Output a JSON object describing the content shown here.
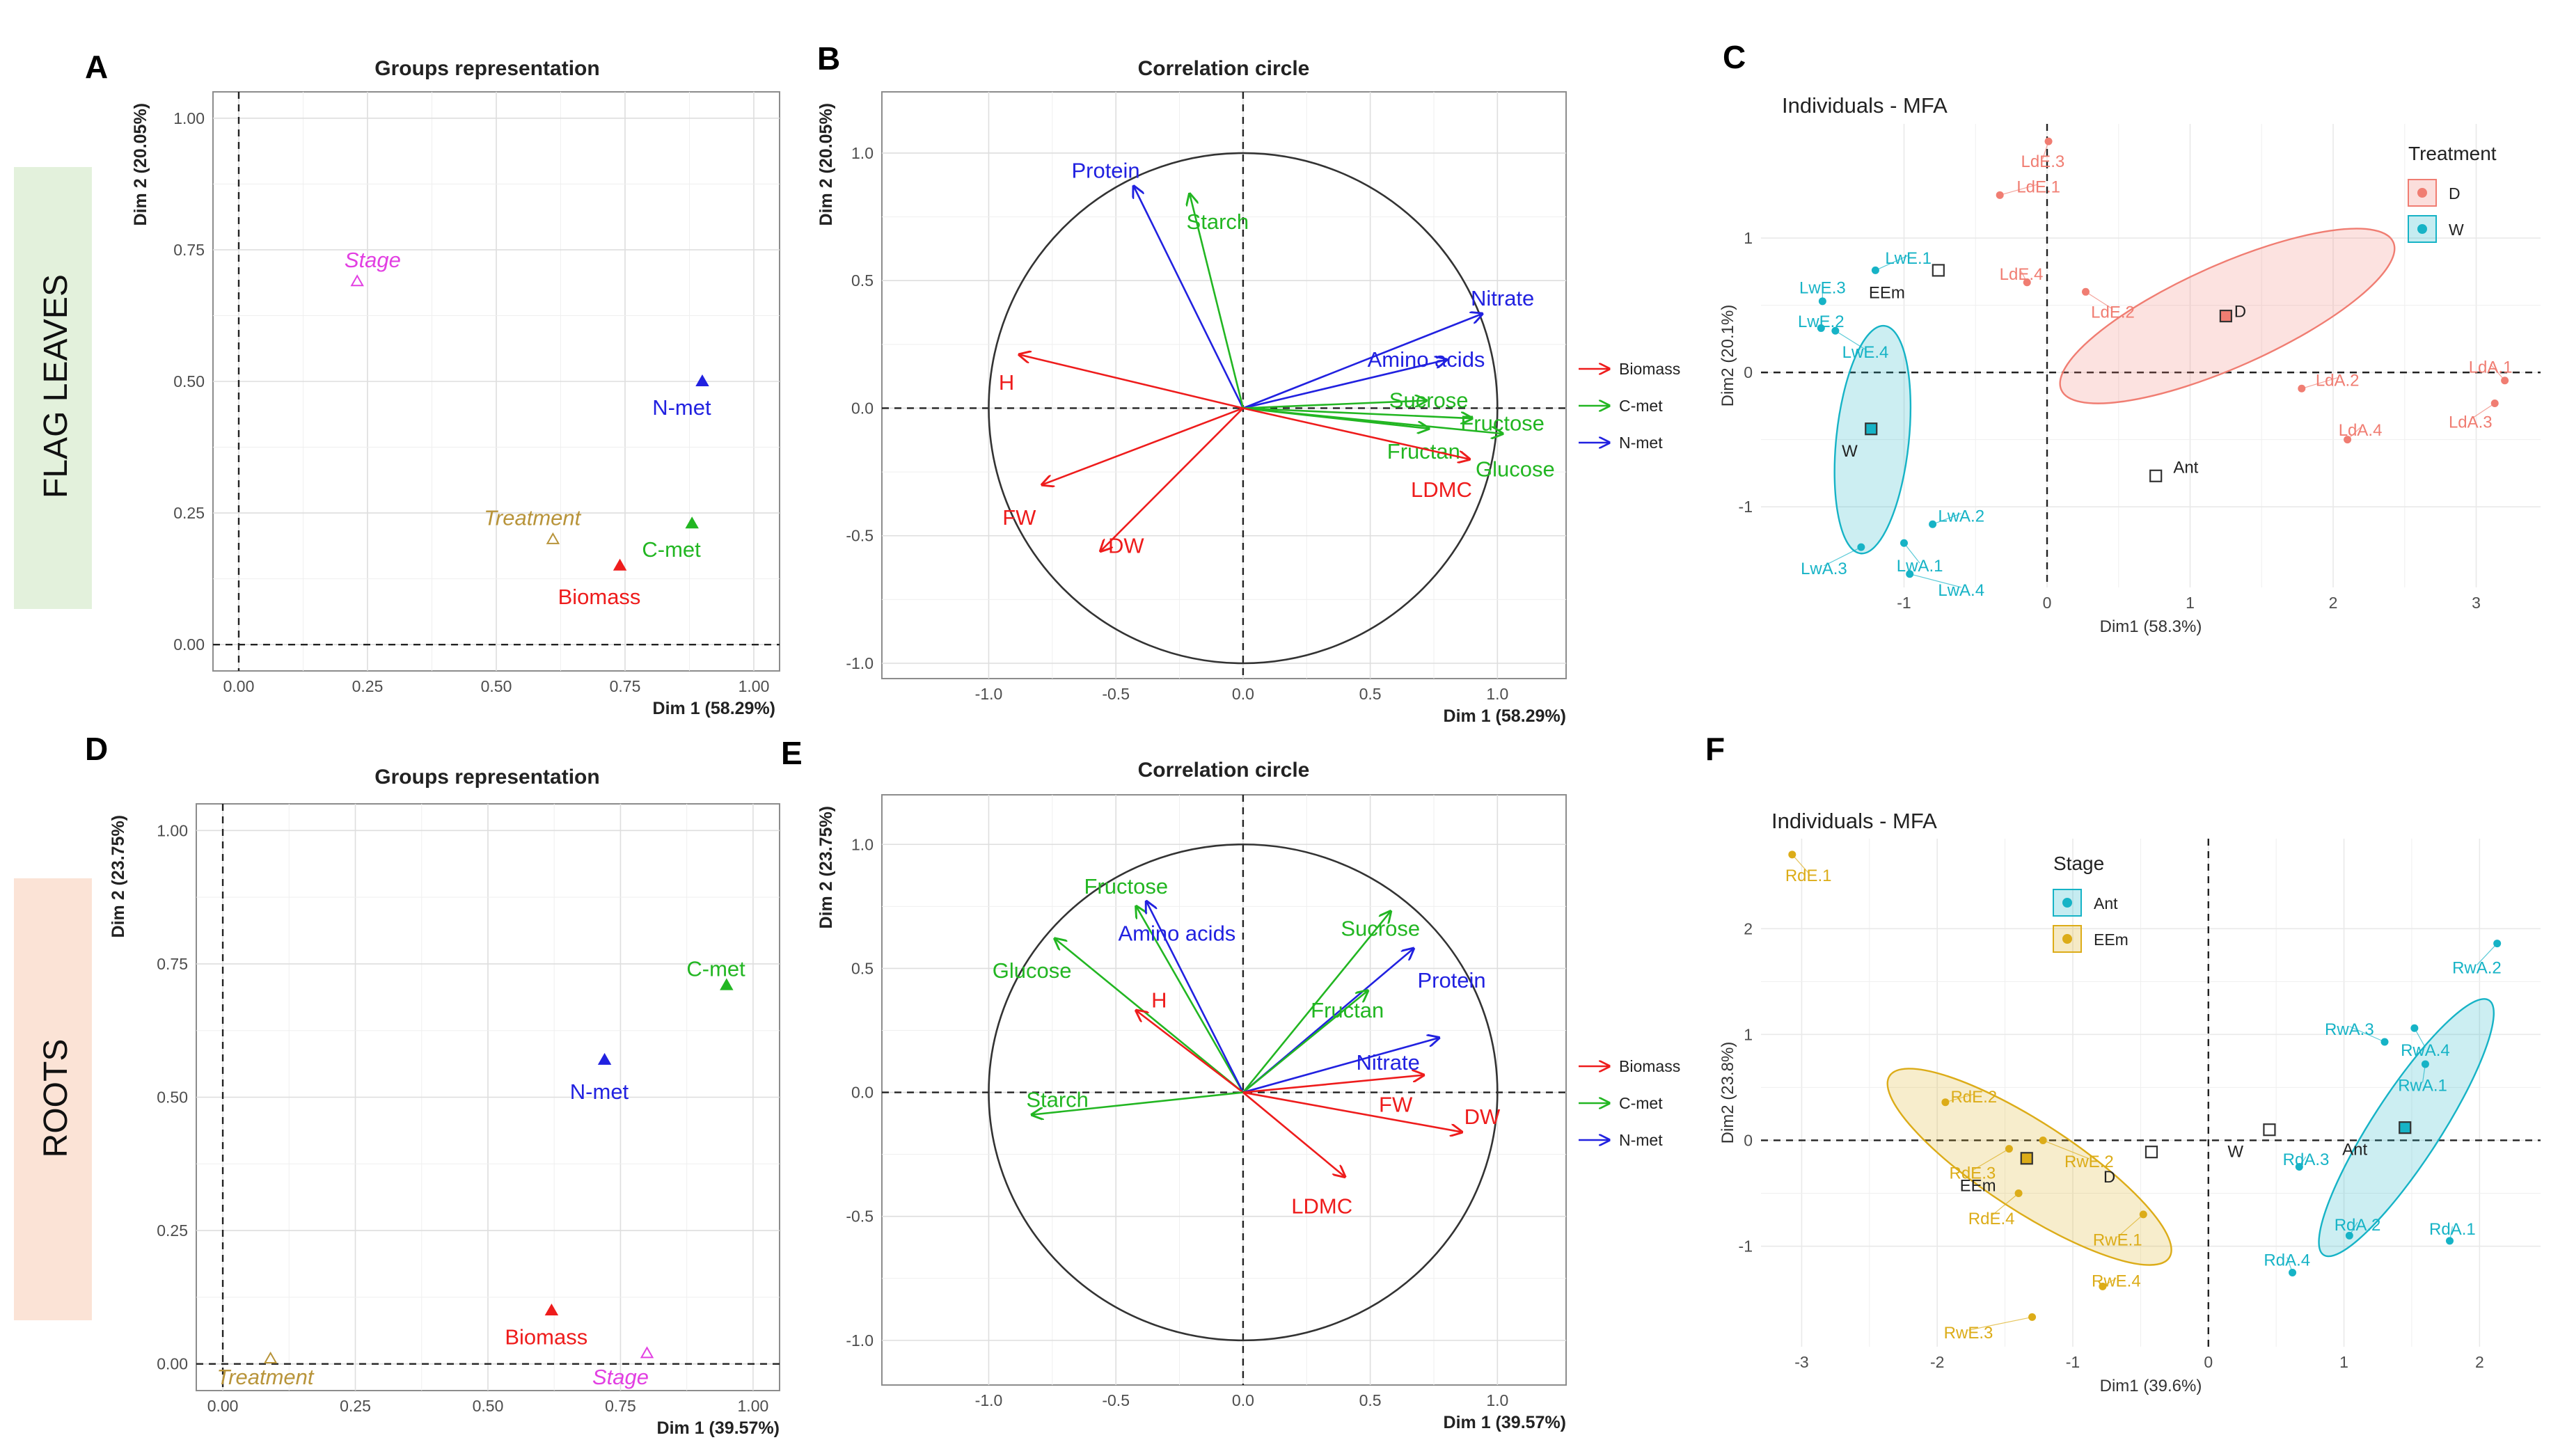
{
  "bands": [
    {
      "label": "FLAG LEAVES",
      "color": "#e3f1dc"
    },
    {
      "label": "ROOTS",
      "color": "#fbe3d6"
    }
  ],
  "colors": {
    "red": "#ee1c1c",
    "green": "#22b622",
    "blue": "#2121e0",
    "gold": "#b8943a",
    "magenta": "#e23fe2",
    "teal": "#16b3c6",
    "salmon": "#f07d72",
    "yellow": "#dcac18",
    "text": "#222222"
  },
  "chart_data": [
    {
      "id": "A",
      "type": "scatter",
      "letter": "A",
      "title": "Groups representation",
      "xlabel": "Dim 1 (58.29%)",
      "ylabel": "Dim 2 (20.05%)",
      "xlim": [
        -0.05,
        1.05
      ],
      "ylim": [
        -0.05,
        1.05
      ],
      "xticks": [
        0.0,
        0.25,
        0.5,
        0.75,
        1.0
      ],
      "xtick_labels": [
        "0.00",
        "0.25",
        "0.50",
        "0.75",
        "1.00"
      ],
      "yticks": [
        0.0,
        0.25,
        0.5,
        0.75,
        1.0
      ],
      "ytick_labels": [
        "0.00",
        "0.25",
        "0.50",
        "0.75",
        "1.00"
      ],
      "points": [
        {
          "label": "Stage",
          "x": 0.23,
          "y": 0.69,
          "color": "magenta",
          "marker": "open",
          "italic": true,
          "lx": 0.26,
          "ly": 0.73
        },
        {
          "label": "N-met",
          "x": 0.9,
          "y": 0.5,
          "color": "blue",
          "marker": "filled",
          "italic": false,
          "lx": 0.86,
          "ly": 0.45
        },
        {
          "label": "Treatment",
          "x": 0.61,
          "y": 0.2,
          "color": "gold",
          "marker": "open",
          "italic": true,
          "lx": 0.57,
          "ly": 0.24
        },
        {
          "label": "C-met",
          "x": 0.88,
          "y": 0.23,
          "color": "green",
          "marker": "filled",
          "italic": false,
          "lx": 0.84,
          "ly": 0.18
        },
        {
          "label": "Biomass",
          "x": 0.74,
          "y": 0.15,
          "color": "red",
          "marker": "filled",
          "italic": false,
          "lx": 0.7,
          "ly": 0.09
        }
      ]
    },
    {
      "id": "B",
      "type": "scatter",
      "letter": "B",
      "title": "Correlation circle",
      "xlabel": "Dim 1 (58.29%)",
      "ylabel": "Dim 2 (20.05%)",
      "xlim": [
        -1.42,
        1.27
      ],
      "ylim": [
        -1.06,
        1.24
      ],
      "xticks": [
        -1.0,
        -0.5,
        0.0,
        0.5,
        1.0
      ],
      "xtick_labels": [
        "-1.0",
        "-0.5",
        "0.0",
        "0.5",
        "1.0"
      ],
      "yticks": [
        -1.0,
        -0.5,
        0.0,
        0.5,
        1.0
      ],
      "ytick_labels": [
        "-1.0",
        "-0.5",
        "0.0",
        "0.5",
        "1.0"
      ],
      "legend": [
        {
          "label": "Biomass",
          "color": "red"
        },
        {
          "label": "C-met",
          "color": "green"
        },
        {
          "label": "N-met",
          "color": "blue"
        }
      ],
      "vectors": [
        {
          "label": "Protein",
          "x": -0.43,
          "y": 0.87,
          "color": "blue",
          "lx": -0.54,
          "ly": 0.93
        },
        {
          "label": "Starch",
          "x": -0.21,
          "y": 0.84,
          "color": "green",
          "lx": -0.1,
          "ly": 0.73
        },
        {
          "label": "Nitrate",
          "x": 0.94,
          "y": 0.37,
          "color": "blue",
          "lx": 1.02,
          "ly": 0.43
        },
        {
          "label": "Amino acids",
          "x": 0.8,
          "y": 0.19,
          "color": "blue",
          "lx": 0.72,
          "ly": 0.19
        },
        {
          "label": "Sucrose",
          "x": 0.72,
          "y": 0.03,
          "color": "green",
          "lx": 0.73,
          "ly": 0.03
        },
        {
          "label": "Fructose",
          "x": 0.9,
          "y": -0.04,
          "color": "green",
          "lx": 1.02,
          "ly": -0.06
        },
        {
          "label": "Fructan",
          "x": 0.73,
          "y": -0.08,
          "color": "green",
          "lx": 0.71,
          "ly": -0.17
        },
        {
          "label": "Glucose",
          "x": 1.02,
          "y": -0.1,
          "color": "green",
          "lx": 1.07,
          "ly": -0.24
        },
        {
          "label": "LDMC",
          "x": 0.89,
          "y": -0.2,
          "color": "red",
          "lx": 0.78,
          "ly": -0.32
        },
        {
          "label": "H",
          "x": -0.88,
          "y": 0.21,
          "color": "red",
          "lx": -0.93,
          "ly": 0.1
        },
        {
          "label": "FW",
          "x": -0.79,
          "y": -0.3,
          "color": "red",
          "lx": -0.88,
          "ly": -0.43
        },
        {
          "label": "DW",
          "x": -0.56,
          "y": -0.56,
          "color": "red",
          "lx": -0.46,
          "ly": -0.54
        }
      ]
    },
    {
      "id": "C",
      "type": "scatter",
      "letter": "C",
      "title": "Individuals - MFA",
      "xlabel": "Dim1 (58.3%)",
      "ylabel": "Dim2 (20.1%)",
      "xlim": [
        -2.0,
        3.45
      ],
      "ylim": [
        -1.6,
        1.85
      ],
      "xticks": [
        -1,
        0,
        1,
        2,
        3
      ],
      "xtick_labels": [
        "-1",
        "0",
        "1",
        "2",
        "3"
      ],
      "yticks": [
        -1,
        0,
        1
      ],
      "ytick_labels": [
        "-1",
        "0",
        "1"
      ],
      "legend_title": "Treatment",
      "legend": [
        {
          "label": "D",
          "color": "salmon"
        },
        {
          "label": "W",
          "color": "teal"
        }
      ],
      "ellipses": [
        {
          "group": "D",
          "cx": 1.26,
          "cy": 0.42,
          "rx": 1.27,
          "ry": 0.38,
          "angle": -24,
          "color": "salmon"
        },
        {
          "group": "W",
          "cx": -1.22,
          "cy": -0.5,
          "rx": 0.8,
          "ry": 0.27,
          "angle": -84,
          "color": "teal"
        }
      ],
      "points": [
        {
          "label": "LdE.3",
          "x": 0.01,
          "y": 1.72,
          "color": "salmon",
          "lx": -0.03,
          "ly": 1.57
        },
        {
          "label": "LdE.1",
          "x": -0.33,
          "y": 1.32,
          "color": "salmon",
          "lx": -0.06,
          "ly": 1.38
        },
        {
          "label": "LdE.4",
          "x": -0.14,
          "y": 0.67,
          "color": "salmon",
          "lx": -0.18,
          "ly": 0.73
        },
        {
          "label": "LdE.2",
          "x": 0.27,
          "y": 0.6,
          "color": "salmon",
          "lx": 0.46,
          "ly": 0.45
        },
        {
          "label": "LdA.1",
          "x": 3.2,
          "y": -0.06,
          "color": "salmon",
          "lx": 3.1,
          "ly": 0.04
        },
        {
          "label": "LdA.2",
          "x": 1.78,
          "y": -0.12,
          "color": "salmon",
          "lx": 2.03,
          "ly": -0.06
        },
        {
          "label": "LdA.3",
          "x": 3.13,
          "y": -0.23,
          "color": "salmon",
          "lx": 2.96,
          "ly": -0.37
        },
        {
          "label": "LdA.4",
          "x": 2.1,
          "y": -0.5,
          "color": "salmon",
          "lx": 2.19,
          "ly": -0.43
        },
        {
          "label": "LwE.1",
          "x": -1.2,
          "y": 0.76,
          "color": "teal",
          "lx": -0.97,
          "ly": 0.85
        },
        {
          "label": "LwE.3",
          "x": -1.57,
          "y": 0.53,
          "color": "teal",
          "lx": -1.57,
          "ly": 0.63
        },
        {
          "label": "LwE.2",
          "x": -1.58,
          "y": 0.33,
          "color": "teal",
          "lx": -1.58,
          "ly": 0.38
        },
        {
          "label": "LwE.4",
          "x": -1.48,
          "y": 0.31,
          "color": "teal",
          "lx": -1.27,
          "ly": 0.15
        },
        {
          "label": "LwA.2",
          "x": -0.8,
          "y": -1.13,
          "color": "teal",
          "lx": -0.6,
          "ly": -1.07
        },
        {
          "label": "LwA.3",
          "x": -1.3,
          "y": -1.3,
          "color": "teal",
          "lx": -1.56,
          "ly": -1.46
        },
        {
          "label": "LwA.1",
          "x": -1.0,
          "y": -1.27,
          "color": "teal",
          "lx": -0.89,
          "ly": -1.44
        },
        {
          "label": "LwA.4",
          "x": -0.96,
          "y": -1.5,
          "color": "teal",
          "lx": -0.6,
          "ly": -1.62
        }
      ],
      "centroids": [
        {
          "label": "EEm",
          "x": -0.76,
          "y": 0.76,
          "filled": false,
          "color": "text",
          "lx": -1.12,
          "ly": 0.6
        },
        {
          "label": "D",
          "x": 1.25,
          "y": 0.42,
          "filled": true,
          "color": "salmon",
          "lx": 1.35,
          "ly": 0.46
        },
        {
          "label": "W",
          "x": -1.23,
          "y": -0.42,
          "filled": true,
          "color": "teal",
          "lx": -1.38,
          "ly": -0.58
        },
        {
          "label": "Ant",
          "x": 0.76,
          "y": -0.77,
          "filled": false,
          "color": "text",
          "lx": 0.97,
          "ly": -0.7
        }
      ]
    },
    {
      "id": "D",
      "type": "scatter",
      "letter": "D",
      "title": "Groups representation",
      "xlabel": "Dim 1 (39.57%)",
      "ylabel": "Dim 2 (23.75%)",
      "xlim": [
        -0.05,
        1.05
      ],
      "ylim": [
        -0.05,
        1.05
      ],
      "xticks": [
        0.0,
        0.25,
        0.5,
        0.75,
        1.0
      ],
      "xtick_labels": [
        "0.00",
        "0.25",
        "0.50",
        "0.75",
        "1.00"
      ],
      "yticks": [
        0.0,
        0.25,
        0.5,
        0.75,
        1.0
      ],
      "ytick_labels": [
        "0.00",
        "0.25",
        "0.50",
        "0.75",
        "1.00"
      ],
      "points": [
        {
          "label": "C-met",
          "x": 0.95,
          "y": 0.71,
          "color": "green",
          "marker": "filled",
          "italic": false,
          "lx": 0.93,
          "ly": 0.74
        },
        {
          "label": "N-met",
          "x": 0.72,
          "y": 0.57,
          "color": "blue",
          "marker": "filled",
          "italic": false,
          "lx": 0.71,
          "ly": 0.51
        },
        {
          "label": "Biomass",
          "x": 0.62,
          "y": 0.1,
          "color": "red",
          "marker": "filled",
          "italic": false,
          "lx": 0.61,
          "ly": 0.05
        },
        {
          "label": "Stage",
          "x": 0.8,
          "y": 0.02,
          "color": "magenta",
          "marker": "open",
          "italic": true,
          "lx": 0.75,
          "ly": -0.025
        },
        {
          "label": "Treatment",
          "x": 0.09,
          "y": 0.01,
          "color": "gold",
          "marker": "open",
          "italic": true,
          "lx": 0.08,
          "ly": -0.025
        }
      ]
    },
    {
      "id": "E",
      "type": "scatter",
      "letter": "E",
      "title": "Correlation circle",
      "xlabel": "Dim 1 (39.57%)",
      "ylabel": "Dim 2 (23.75%)",
      "xlim": [
        -1.42,
        1.27
      ],
      "ylim": [
        -1.18,
        1.2
      ],
      "xticks": [
        -1.0,
        -0.5,
        0.0,
        0.5,
        1.0
      ],
      "xtick_labels": [
        "-1.0",
        "-0.5",
        "0.0",
        "0.5",
        "1.0"
      ],
      "yticks": [
        -1.0,
        -0.5,
        0.0,
        0.5,
        1.0
      ],
      "ytick_labels": [
        "-1.0",
        "-0.5",
        "0.0",
        "0.5",
        "1.0"
      ],
      "legend": [
        {
          "label": "Biomass",
          "color": "red"
        },
        {
          "label": "C-met",
          "color": "green"
        },
        {
          "label": "N-met",
          "color": "blue"
        }
      ],
      "vectors": [
        {
          "label": "Fructose",
          "x": -0.42,
          "y": 0.75,
          "color": "green",
          "lx": -0.46,
          "ly": 0.83
        },
        {
          "label": "Amino acids",
          "x": -0.38,
          "y": 0.77,
          "color": "blue",
          "lx": -0.26,
          "ly": 0.64
        },
        {
          "label": "Glucose",
          "x": -0.74,
          "y": 0.62,
          "color": "green",
          "lx": -0.83,
          "ly": 0.49
        },
        {
          "label": "H",
          "x": -0.42,
          "y": 0.33,
          "color": "red",
          "lx": -0.33,
          "ly": 0.37
        },
        {
          "label": "Starch",
          "x": -0.83,
          "y": -0.09,
          "color": "green",
          "lx": -0.73,
          "ly": -0.03
        },
        {
          "label": "Sucrose",
          "x": 0.58,
          "y": 0.73,
          "color": "green",
          "lx": 0.54,
          "ly": 0.66
        },
        {
          "label": "Protein",
          "x": 0.67,
          "y": 0.58,
          "color": "blue",
          "lx": 0.82,
          "ly": 0.45
        },
        {
          "label": "Fructan",
          "x": 0.49,
          "y": 0.41,
          "color": "green",
          "lx": 0.41,
          "ly": 0.33
        },
        {
          "label": "Nitrate",
          "x": 0.77,
          "y": 0.22,
          "color": "blue",
          "lx": 0.57,
          "ly": 0.12
        },
        {
          "label": "FW",
          "x": 0.71,
          "y": 0.07,
          "color": "red",
          "lx": 0.6,
          "ly": -0.05
        },
        {
          "label": "DW",
          "x": 0.86,
          "y": -0.16,
          "color": "red",
          "lx": 0.94,
          "ly": -0.1
        },
        {
          "label": "LDMC",
          "x": 0.4,
          "y": -0.34,
          "color": "red",
          "lx": 0.31,
          "ly": -0.46
        }
      ]
    },
    {
      "id": "F",
      "type": "scatter",
      "letter": "F",
      "title": "Individuals - MFA",
      "xlabel": "Dim1 (39.6%)",
      "ylabel": "Dim2 (23.8%)",
      "xlim": [
        -3.3,
        2.45
      ],
      "ylim": [
        -1.95,
        2.85
      ],
      "xticks": [
        -3,
        -2,
        -1,
        0,
        1,
        2
      ],
      "xtick_labels": [
        "-3",
        "-2",
        "-1",
        "0",
        "1",
        "2"
      ],
      "yticks": [
        -1,
        0,
        1,
        2
      ],
      "ytick_labels": [
        "-1",
        "0",
        "1",
        "2"
      ],
      "legend_title": "Stage",
      "legend": [
        {
          "label": "Ant",
          "color": "teal"
        },
        {
          "label": "EEm",
          "color": "yellow"
        }
      ],
      "ellipses": [
        {
          "group": "EEm",
          "cx": -1.32,
          "cy": -0.25,
          "rx": 1.23,
          "ry": 0.42,
          "angle": 33,
          "color": "yellow"
        },
        {
          "group": "Ant",
          "cx": 1.46,
          "cy": 0.12,
          "rx": 1.12,
          "ry": 0.32,
          "angle": -57,
          "color": "teal"
        }
      ],
      "points": [
        {
          "label": "RdE.1",
          "x": -3.07,
          "y": 2.7,
          "color": "yellow",
          "lx": -2.95,
          "ly": 2.5
        },
        {
          "label": "RdE.2",
          "x": -1.94,
          "y": 0.36,
          "color": "yellow",
          "lx": -1.73,
          "ly": 0.41
        },
        {
          "label": "RdE.3",
          "x": -1.47,
          "y": -0.08,
          "color": "yellow",
          "lx": -1.74,
          "ly": -0.31
        },
        {
          "label": "RdE.4",
          "x": -1.4,
          "y": -0.5,
          "color": "yellow",
          "lx": -1.6,
          "ly": -0.74
        },
        {
          "label": "RwE.2",
          "x": -1.22,
          "y": 0.0,
          "color": "yellow",
          "lx": -0.88,
          "ly": -0.2
        },
        {
          "label": "RwE.1",
          "x": -0.48,
          "y": -0.7,
          "color": "yellow",
          "lx": -0.67,
          "ly": -0.94
        },
        {
          "label": "RwE.4",
          "x": -0.78,
          "y": -1.38,
          "color": "yellow",
          "lx": -0.68,
          "ly": -1.33
        },
        {
          "label": "RwE.3",
          "x": -1.3,
          "y": -1.67,
          "color": "yellow",
          "lx": -1.77,
          "ly": -1.82
        },
        {
          "label": "RwA.2",
          "x": 2.13,
          "y": 1.86,
          "color": "teal",
          "lx": 1.98,
          "ly": 1.63
        },
        {
          "label": "RwA.3",
          "x": 1.3,
          "y": 0.93,
          "color": "teal",
          "lx": 1.04,
          "ly": 1.05
        },
        {
          "label": "RwA.4",
          "x": 1.52,
          "y": 1.06,
          "color": "teal",
          "lx": 1.6,
          "ly": 0.85
        },
        {
          "label": "RwA.1",
          "x": 1.6,
          "y": 0.72,
          "color": "teal",
          "lx": 1.58,
          "ly": 0.52
        },
        {
          "label": "RdA.3",
          "x": 0.67,
          "y": -0.25,
          "color": "teal",
          "lx": 0.72,
          "ly": -0.18
        },
        {
          "label": "RdA.2",
          "x": 1.04,
          "y": -0.9,
          "color": "teal",
          "lx": 1.1,
          "ly": -0.8
        },
        {
          "label": "RdA.1",
          "x": 1.78,
          "y": -0.95,
          "color": "teal",
          "lx": 1.8,
          "ly": -0.84
        },
        {
          "label": "RdA.4",
          "x": 0.62,
          "y": -1.25,
          "color": "teal",
          "lx": 0.58,
          "ly": -1.13
        }
      ],
      "centroids": [
        {
          "label": "EEm",
          "x": -1.34,
          "y": -0.17,
          "filled": true,
          "color": "yellow",
          "lx": -1.7,
          "ly": -0.42
        },
        {
          "label": "D",
          "x": -0.42,
          "y": -0.11,
          "filled": false,
          "color": "text",
          "lx": -0.73,
          "ly": -0.34
        },
        {
          "label": "W",
          "x": 0.45,
          "y": 0.1,
          "filled": false,
          "color": "text",
          "lx": 0.2,
          "ly": -0.1
        },
        {
          "label": "Ant",
          "x": 1.45,
          "y": 0.12,
          "filled": true,
          "color": "teal",
          "lx": 1.08,
          "ly": -0.08
        }
      ]
    }
  ]
}
